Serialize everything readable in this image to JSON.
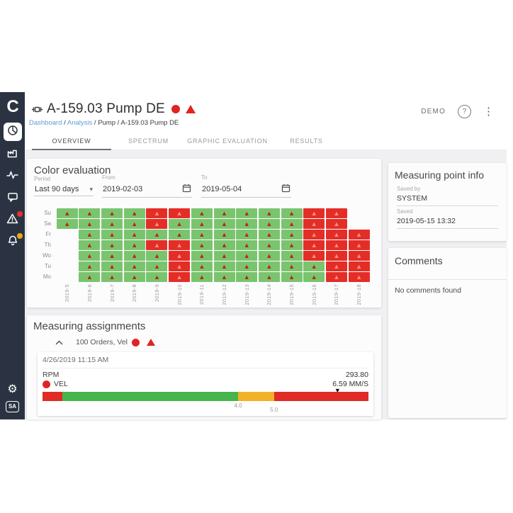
{
  "colors": {
    "sidebar_bg": "#2b3343",
    "status_red": "#e02424",
    "heatmap_green": "#7ac46e",
    "heatmap_red": "#e52d27",
    "bar_red": "#e02b27",
    "bar_green": "#46b54b",
    "bar_amber": "#f2b226",
    "link_blue": "#5e9bd8",
    "badge_yellow": "#eba918"
  },
  "icons": {
    "warning_glyph": "▲",
    "gear_glyph": "⚙",
    "caret_glyph": "▾",
    "marker_glyph": "▼",
    "help_glyph": "?",
    "kebab_glyph": "⋮"
  },
  "sidebar": {
    "logo_text": "C",
    "sa_label": "SA"
  },
  "header": {
    "title": "A-159.03 Pump DE",
    "user_label": "DEMO",
    "breadcrumb": [
      {
        "label": "Dashboard",
        "link": true
      },
      {
        "label": "Analysis",
        "link": true
      },
      {
        "label": "Pump",
        "link": false
      },
      {
        "label": "A-159.03 Pump DE",
        "link": false
      }
    ]
  },
  "tabs": [
    {
      "label": "OVERVIEW",
      "active": true
    },
    {
      "label": "SPECTRUM",
      "active": false
    },
    {
      "label": "GRAPHIC EVALUATION",
      "active": false
    },
    {
      "label": "RESULTS",
      "active": false
    }
  ],
  "color_evaluation": {
    "title": "Color evaluation",
    "period": {
      "label": "Period",
      "value": "Last 90 days"
    },
    "from": {
      "label": "From",
      "value": "2019-02-03"
    },
    "to": {
      "label": "To",
      "value": "2019-05-04"
    },
    "heatmap": {
      "columns": [
        "2019-5",
        "2019-6",
        "2019-7",
        "2019-8",
        "2019-9",
        "2019-10",
        "2019-11",
        "2019-12",
        "2019-13",
        "2019-14",
        "2019-15",
        "2019-16",
        "2019-17",
        "2019-18"
      ],
      "rows": [
        {
          "day": "Su",
          "cells": [
            "G",
            "G",
            "G",
            "G",
            "R",
            "R",
            "G",
            "G",
            "G",
            "G",
            "G",
            "R",
            "R",
            null
          ]
        },
        {
          "day": "Sa",
          "cells": [
            "G",
            "G",
            "G",
            "G",
            "R",
            "G",
            "G",
            "G",
            "G",
            "G",
            "G",
            "R",
            "R",
            null
          ]
        },
        {
          "day": "Fr",
          "cells": [
            null,
            "G",
            "G",
            "G",
            "G",
            "G",
            "G",
            "G",
            "G",
            "G",
            "G",
            "R",
            "R",
            "R"
          ]
        },
        {
          "day": "Th",
          "cells": [
            null,
            "G",
            "G",
            "G",
            "R",
            "R",
            "G",
            "G",
            "G",
            "G",
            "G",
            "R",
            "R",
            "R"
          ]
        },
        {
          "day": "Wo",
          "cells": [
            null,
            "G",
            "G",
            "G",
            "G",
            "R",
            "G",
            "G",
            "G",
            "G",
            "G",
            "R",
            "R",
            "R"
          ]
        },
        {
          "day": "Tu",
          "cells": [
            null,
            "G",
            "G",
            "G",
            "G",
            "R",
            "G",
            "G",
            "G",
            "G",
            "G",
            "G",
            "R",
            "R"
          ]
        },
        {
          "day": "Mo",
          "cells": [
            null,
            "G",
            "G",
            "G",
            "G",
            "R",
            "G",
            "G",
            "G",
            "G",
            "G",
            "G",
            "R",
            "R"
          ]
        }
      ],
      "cell_states": {
        "G": "warning-on-green",
        "R": "alarm-red"
      }
    }
  },
  "measuring_point_info": {
    "title": "Measuring point info",
    "saved_by_label": "Saved by",
    "saved_by_value": "SYSTEM",
    "saved_label": "Saved",
    "saved_value": "2019-05-15 13:32"
  },
  "comments": {
    "title": "Comments",
    "empty_text": "No comments found"
  },
  "measuring_assignments": {
    "title": "Measuring assignments",
    "group_label": "100 Orders, Vel",
    "reading": {
      "timestamp": "4/26/2019 11:15 AM",
      "rpm_label": "RPM",
      "rpm_value": "293.80",
      "vel_label": "VEL",
      "vel_value": "6.59 MM/S",
      "threshold_bar": {
        "segments": [
          {
            "color": "#e02b27",
            "width_pct": 6
          },
          {
            "color": "#46b54b",
            "width_pct": 54
          },
          {
            "color": "#f2b226",
            "width_pct": 11
          },
          {
            "color": "#e02b27",
            "width_pct": 29
          }
        ],
        "ticks": [
          {
            "label": "4.0",
            "pos_pct": 60
          },
          {
            "label": "5.0",
            "pos_pct": 71
          }
        ],
        "marker_pos_pct": 90.5,
        "current_value": "6.59"
      }
    }
  }
}
